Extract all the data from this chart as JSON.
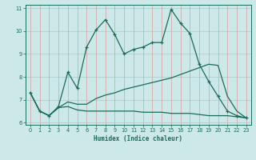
{
  "xlabel": "Humidex (Indice chaleur)",
  "bg_color": "#cce8e8",
  "line_color": "#1a6b5a",
  "x": [
    0,
    1,
    2,
    3,
    4,
    5,
    6,
    7,
    8,
    9,
    10,
    11,
    12,
    13,
    14,
    15,
    16,
    17,
    18,
    19,
    20,
    21,
    22,
    23
  ],
  "y_main": [
    7.3,
    6.5,
    6.3,
    6.7,
    8.2,
    7.5,
    9.3,
    10.05,
    10.5,
    9.85,
    9.0,
    9.2,
    9.3,
    9.5,
    9.5,
    10.95,
    10.35,
    9.9,
    8.55,
    7.8,
    7.15,
    6.5,
    6.3,
    6.2
  ],
  "y_upper": [
    7.3,
    6.5,
    6.3,
    6.65,
    6.9,
    6.8,
    6.8,
    7.05,
    7.2,
    7.3,
    7.45,
    7.55,
    7.65,
    7.75,
    7.85,
    7.95,
    8.1,
    8.25,
    8.4,
    8.55,
    8.5,
    7.15,
    6.5,
    6.2
  ],
  "y_lower": [
    7.3,
    6.5,
    6.3,
    6.65,
    6.7,
    6.55,
    6.5,
    6.5,
    6.5,
    6.5,
    6.5,
    6.5,
    6.45,
    6.45,
    6.45,
    6.4,
    6.4,
    6.4,
    6.35,
    6.3,
    6.3,
    6.3,
    6.25,
    6.2
  ],
  "ylim": [
    5.9,
    11.15
  ],
  "xlim": [
    -0.5,
    23.5
  ],
  "yticks": [
    6,
    7,
    8,
    9,
    10,
    11
  ],
  "xticks": [
    0,
    1,
    2,
    3,
    4,
    5,
    6,
    7,
    8,
    9,
    10,
    11,
    12,
    13,
    14,
    15,
    16,
    17,
    18,
    19,
    20,
    21,
    22,
    23
  ],
  "vgrid_color": "#d4a0a0",
  "hgrid_color": "#a8cccc"
}
